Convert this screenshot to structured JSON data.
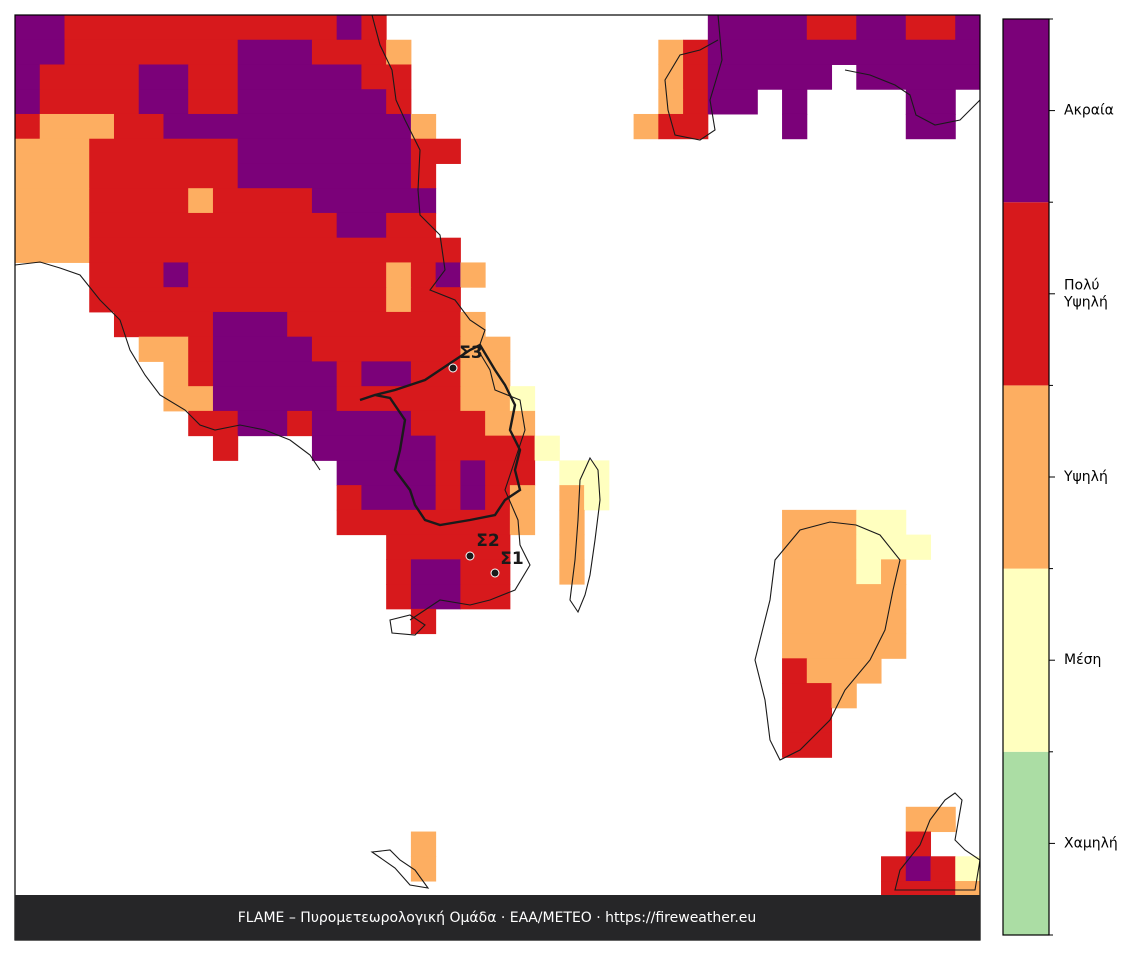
{
  "map": {
    "legend": {
      "levels": [
        {
          "label": [
            "Χαμηλή"
          ],
          "color": "#abdda4"
        },
        {
          "label": [
            "Μέση"
          ],
          "color": "#ffffbf"
        },
        {
          "label": [
            "Υψηλή"
          ],
          "color": "#fdae61"
        },
        {
          "label": [
            "Πολύ",
            "Υψηλή"
          ],
          "color": "#d7191c"
        },
        {
          "label": [
            "Ακραία"
          ],
          "color": "#7b0179"
        }
      ]
    },
    "grid": {
      "columns": 39,
      "rows": 36,
      "runs": [
        [
          0,
          0,
          1,
          5
        ],
        [
          0,
          2,
          12,
          4
        ],
        [
          0,
          13,
          13,
          5
        ],
        [
          0,
          14,
          14,
          4
        ],
        [
          0,
          28,
          31,
          5
        ],
        [
          0,
          32,
          33,
          4
        ],
        [
          0,
          34,
          35,
          5
        ],
        [
          0,
          36,
          37,
          4
        ],
        [
          0,
          38,
          38,
          5
        ],
        [
          1,
          0,
          1,
          5
        ],
        [
          1,
          2,
          8,
          4
        ],
        [
          1,
          9,
          11,
          5
        ],
        [
          1,
          12,
          14,
          4
        ],
        [
          1,
          15,
          15,
          3
        ],
        [
          1,
          26,
          26,
          3
        ],
        [
          1,
          27,
          27,
          4
        ],
        [
          1,
          28,
          38,
          5
        ],
        [
          2,
          0,
          0,
          5
        ],
        [
          2,
          1,
          4,
          4
        ],
        [
          2,
          5,
          6,
          5
        ],
        [
          2,
          7,
          8,
          4
        ],
        [
          2,
          9,
          13,
          5
        ],
        [
          2,
          14,
          15,
          4
        ],
        [
          2,
          26,
          26,
          3
        ],
        [
          2,
          27,
          27,
          4
        ],
        [
          2,
          28,
          32,
          5
        ],
        [
          2,
          34,
          38,
          5
        ],
        [
          3,
          0,
          0,
          5
        ],
        [
          3,
          1,
          4,
          4
        ],
        [
          3,
          5,
          6,
          5
        ],
        [
          3,
          7,
          8,
          4
        ],
        [
          3,
          9,
          14,
          5
        ],
        [
          3,
          15,
          15,
          4
        ],
        [
          3,
          26,
          26,
          3
        ],
        [
          3,
          27,
          27,
          4
        ],
        [
          3,
          28,
          29,
          5
        ],
        [
          3,
          31,
          31,
          5
        ],
        [
          3,
          36,
          37,
          5
        ],
        [
          4,
          0,
          0,
          4
        ],
        [
          4,
          1,
          3,
          3
        ],
        [
          4,
          4,
          5,
          4
        ],
        [
          4,
          6,
          15,
          5
        ],
        [
          4,
          16,
          16,
          3
        ],
        [
          4,
          25,
          25,
          3
        ],
        [
          4,
          26,
          27,
          4
        ],
        [
          4,
          31,
          31,
          5
        ],
        [
          4,
          36,
          37,
          5
        ],
        [
          5,
          0,
          2,
          3
        ],
        [
          5,
          3,
          8,
          4
        ],
        [
          5,
          9,
          15,
          5
        ],
        [
          5,
          16,
          17,
          4
        ],
        [
          6,
          0,
          2,
          3
        ],
        [
          6,
          3,
          8,
          4
        ],
        [
          6,
          9,
          15,
          5
        ],
        [
          6,
          16,
          16,
          4
        ],
        [
          7,
          0,
          2,
          3
        ],
        [
          7,
          3,
          6,
          4
        ],
        [
          7,
          7,
          7,
          3
        ],
        [
          7,
          8,
          11,
          4
        ],
        [
          7,
          12,
          16,
          5
        ],
        [
          8,
          0,
          2,
          3
        ],
        [
          8,
          3,
          12,
          4
        ],
        [
          8,
          13,
          14,
          5
        ],
        [
          8,
          15,
          16,
          4
        ],
        [
          9,
          0,
          2,
          3
        ],
        [
          9,
          3,
          17,
          4
        ],
        [
          10,
          3,
          5,
          4
        ],
        [
          10,
          6,
          6,
          5
        ],
        [
          10,
          7,
          14,
          4
        ],
        [
          10,
          15,
          15,
          3
        ],
        [
          10,
          16,
          16,
          4
        ],
        [
          10,
          17,
          17,
          5
        ],
        [
          10,
          18,
          18,
          3
        ],
        [
          11,
          3,
          14,
          4
        ],
        [
          11,
          15,
          15,
          3
        ],
        [
          11,
          16,
          17,
          4
        ],
        [
          12,
          4,
          7,
          4
        ],
        [
          12,
          8,
          10,
          5
        ],
        [
          12,
          11,
          17,
          4
        ],
        [
          12,
          18,
          18,
          3
        ],
        [
          13,
          5,
          6,
          3
        ],
        [
          13,
          7,
          7,
          4
        ],
        [
          13,
          8,
          11,
          5
        ],
        [
          13,
          12,
          17,
          4
        ],
        [
          13,
          18,
          19,
          3
        ],
        [
          14,
          6,
          6,
          3
        ],
        [
          14,
          7,
          7,
          4
        ],
        [
          14,
          8,
          12,
          5
        ],
        [
          14,
          13,
          13,
          4
        ],
        [
          14,
          14,
          15,
          5
        ],
        [
          14,
          16,
          17,
          4
        ],
        [
          14,
          18,
          19,
          3
        ],
        [
          15,
          6,
          7,
          3
        ],
        [
          15,
          8,
          12,
          5
        ],
        [
          15,
          13,
          17,
          4
        ],
        [
          15,
          18,
          19,
          3
        ],
        [
          15,
          20,
          20,
          2
        ],
        [
          16,
          7,
          8,
          4
        ],
        [
          16,
          9,
          10,
          5
        ],
        [
          16,
          11,
          11,
          4
        ],
        [
          16,
          12,
          15,
          5
        ],
        [
          16,
          16,
          18,
          4
        ],
        [
          16,
          19,
          20,
          3
        ],
        [
          17,
          8,
          8,
          4
        ],
        [
          17,
          12,
          16,
          5
        ],
        [
          17,
          17,
          20,
          4
        ],
        [
          17,
          21,
          21,
          2
        ],
        [
          18,
          13,
          16,
          5
        ],
        [
          18,
          17,
          17,
          4
        ],
        [
          18,
          18,
          18,
          5
        ],
        [
          18,
          19,
          20,
          4
        ],
        [
          18,
          22,
          23,
          2
        ],
        [
          19,
          13,
          13,
          4
        ],
        [
          19,
          14,
          16,
          5
        ],
        [
          19,
          17,
          17,
          4
        ],
        [
          19,
          18,
          18,
          5
        ],
        [
          19,
          19,
          19,
          4
        ],
        [
          19,
          20,
          20,
          3
        ],
        [
          19,
          22,
          22,
          3
        ],
        [
          19,
          23,
          23,
          2
        ],
        [
          20,
          13,
          19,
          4
        ],
        [
          20,
          20,
          20,
          3
        ],
        [
          20,
          22,
          22,
          3
        ],
        [
          20,
          31,
          33,
          3
        ],
        [
          20,
          34,
          35,
          2
        ],
        [
          21,
          15,
          19,
          4
        ],
        [
          21,
          22,
          22,
          3
        ],
        [
          21,
          31,
          33,
          3
        ],
        [
          21,
          34,
          36,
          2
        ],
        [
          22,
          15,
          15,
          4
        ],
        [
          22,
          16,
          17,
          5
        ],
        [
          22,
          18,
          19,
          4
        ],
        [
          22,
          22,
          22,
          3
        ],
        [
          22,
          31,
          33,
          3
        ],
        [
          22,
          34,
          34,
          2
        ],
        [
          22,
          35,
          35,
          3
        ],
        [
          23,
          15,
          15,
          4
        ],
        [
          23,
          16,
          17,
          5
        ],
        [
          23,
          18,
          19,
          4
        ],
        [
          23,
          31,
          35,
          3
        ],
        [
          24,
          16,
          16,
          4
        ],
        [
          24,
          31,
          35,
          3
        ],
        [
          25,
          31,
          35,
          3
        ],
        [
          26,
          31,
          31,
          4
        ],
        [
          26,
          32,
          34,
          3
        ],
        [
          27,
          31,
          32,
          4
        ],
        [
          27,
          33,
          33,
          3
        ],
        [
          28,
          31,
          32,
          4
        ],
        [
          29,
          31,
          32,
          4
        ],
        [
          32,
          36,
          37,
          3
        ],
        [
          33,
          16,
          16,
          3
        ],
        [
          33,
          36,
          36,
          4
        ],
        [
          34,
          16,
          16,
          3
        ],
        [
          34,
          35,
          35,
          4
        ],
        [
          34,
          36,
          36,
          5
        ],
        [
          34,
          37,
          37,
          4
        ],
        [
          34,
          38,
          38,
          2
        ],
        [
          35,
          35,
          37,
          4
        ],
        [
          35,
          38,
          38,
          3
        ]
      ]
    },
    "stations": [
      {
        "label": "Σ1"
      },
      {
        "label": "Σ2"
      },
      {
        "label": "Σ3"
      }
    ],
    "footer": "FLAME – Πυρομετεωρολογική Ομάδα · ΕΑΑ/METEO · https://fireweather.eu"
  }
}
